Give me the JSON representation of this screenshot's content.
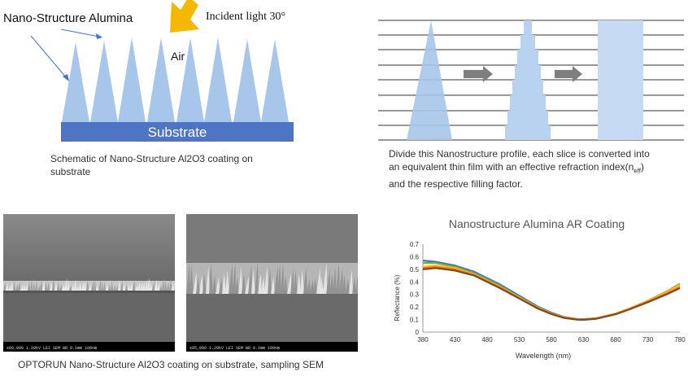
{
  "schematic": {
    "title": "Nano-Structure Alumina",
    "incident": "Incident light 30°",
    "air": "Air",
    "substrate": "Substrate",
    "caption": "Schematic of Nano-Structure Al2O3 coating on substrate"
  },
  "slices": {
    "caption_line1": "Divide this Nanostructure profile, each slice is converted into",
    "caption_line2_pre": "an equivalent  thin film with an effective refraction index(n",
    "caption_line2_sub": "eff",
    "caption_line2_post": ")",
    "caption_line3": "and the respective filling factor."
  },
  "sem": {
    "caption": "OPTORUN Nano-Structure Al2O3 coating on substrate, sampling SEM",
    "image1_databar": "x80,000   1.20kV LEI    SEM    WD 8.1mm        100nm",
    "image2_databar": "x95,000   1.20kV LEI    SEM    WD 8.1mm        100nm"
  },
  "colors": {
    "cone": "#a7c6ea",
    "substrate": "#4f74c4",
    "arrow": "#f5b800",
    "slice_arrow": "#7f7f7f"
  },
  "chart_data": {
    "type": "line",
    "title": "Nanostructure Alumina AR Coating",
    "xlabel": "Wavelength (nm)",
    "ylabel": "Reflectance (%)",
    "xlim": [
      380,
      780
    ],
    "ylim": [
      0,
      0.7
    ],
    "xticks": [
      380,
      430,
      480,
      530,
      580,
      630,
      680,
      730,
      780
    ],
    "yticks": [
      0,
      0.1,
      0.2,
      0.3,
      0.4,
      0.5,
      0.6,
      0.7
    ],
    "grid": false,
    "x": [
      380,
      400,
      430,
      460,
      480,
      500,
      530,
      560,
      580,
      600,
      620,
      630,
      650,
      680,
      700,
      730,
      760,
      780
    ],
    "series": [
      {
        "color": "#4472c4",
        "values": [
          0.57,
          0.56,
          0.53,
          0.48,
          0.43,
          0.38,
          0.29,
          0.2,
          0.155,
          0.12,
          0.105,
          0.103,
          0.11,
          0.145,
          0.18,
          0.24,
          0.31,
          0.36
        ]
      },
      {
        "color": "#70ad47",
        "values": [
          0.55,
          0.55,
          0.52,
          0.47,
          0.42,
          0.37,
          0.28,
          0.195,
          0.15,
          0.118,
          0.104,
          0.102,
          0.11,
          0.148,
          0.185,
          0.25,
          0.325,
          0.385
        ]
      },
      {
        "color": "#ffc000",
        "values": [
          0.52,
          0.53,
          0.51,
          0.46,
          0.41,
          0.36,
          0.275,
          0.19,
          0.148,
          0.116,
          0.102,
          0.1,
          0.108,
          0.147,
          0.184,
          0.248,
          0.32,
          0.375
        ]
      },
      {
        "color": "#ed7d31",
        "values": [
          0.51,
          0.52,
          0.5,
          0.455,
          0.405,
          0.355,
          0.27,
          0.188,
          0.146,
          0.114,
          0.1,
          0.099,
          0.107,
          0.144,
          0.18,
          0.242,
          0.31,
          0.36
        ]
      },
      {
        "color": "#8b4513",
        "values": [
          0.5,
          0.51,
          0.49,
          0.45,
          0.4,
          0.35,
          0.268,
          0.185,
          0.144,
          0.112,
          0.099,
          0.098,
          0.106,
          0.142,
          0.178,
          0.238,
          0.302,
          0.35
        ]
      }
    ]
  }
}
